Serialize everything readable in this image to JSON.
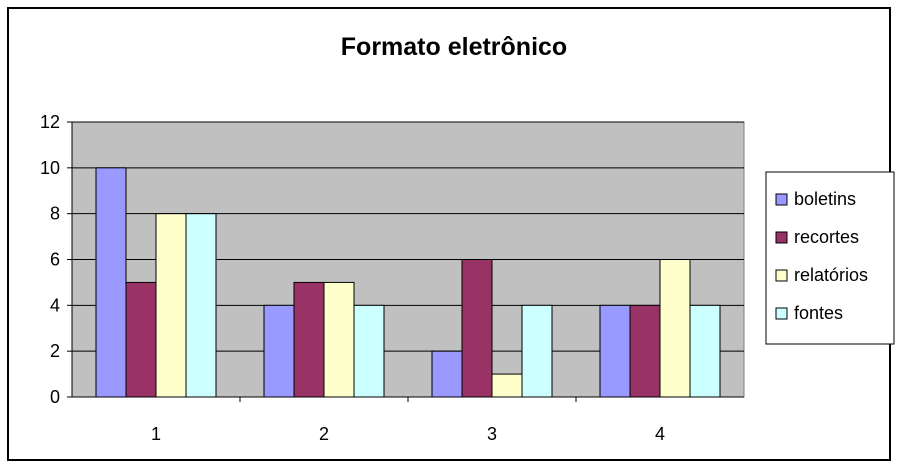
{
  "chart_data": {
    "type": "bar",
    "title": "Formato eletrônico",
    "categories": [
      "1",
      "2",
      "3",
      "4"
    ],
    "series": [
      {
        "name": "boletins",
        "values": [
          10,
          4,
          2,
          4
        ],
        "color": "#9999ff"
      },
      {
        "name": "recortes",
        "values": [
          5,
          5,
          6,
          4
        ],
        "color": "#993366"
      },
      {
        "name": "relatórios",
        "values": [
          8,
          5,
          1,
          6
        ],
        "color": "#ffffcc"
      },
      {
        "name": "fontes",
        "values": [
          8,
          4,
          4,
          4
        ],
        "color": "#ccffff"
      }
    ],
    "xlabel": "",
    "ylabel": "",
    "ylim": [
      0,
      12
    ],
    "yticks": [
      0,
      2,
      4,
      6,
      8,
      10,
      12
    ],
    "grid": true,
    "plot_background": "#c0c0c0",
    "legend_position": "right"
  }
}
